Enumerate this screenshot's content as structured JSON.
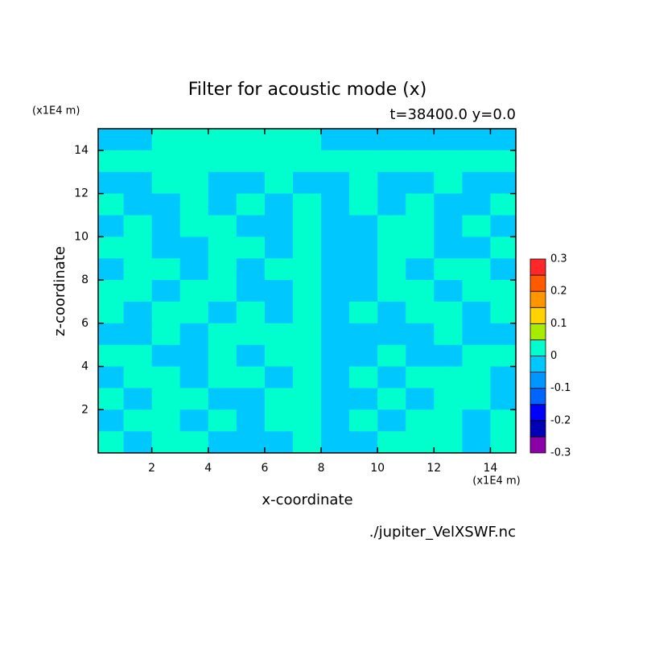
{
  "chart_data": {
    "type": "contour",
    "title": "Filter for acoustic mode (x)",
    "subtitle": "t=38400.0 y=0.0",
    "xlabel": "x-coordinate",
    "ylabel": "z-coordinate",
    "xunit": "(x1E4 m)",
    "yunit": "(x1E4 m)",
    "footer": "./jupiter_VelXSWF.nc",
    "xlim": [
      0.1,
      14.9
    ],
    "ylim": [
      0,
      15
    ],
    "xticks": [
      2,
      4,
      6,
      8,
      10,
      12,
      14
    ],
    "yticks": [
      2,
      4,
      6,
      8,
      10,
      12,
      14
    ],
    "x": [
      0.5,
      1.5,
      2.5,
      3.5,
      4.5,
      5.5,
      6.5,
      7.5,
      8.5,
      9.5,
      10.5,
      11.5,
      12.5,
      13.5,
      14.5
    ],
    "z": [
      14.5,
      13.5,
      12.5,
      11.5,
      10.5,
      9.5,
      8.5,
      7.5,
      6.5,
      5.5,
      4.5,
      3.5,
      2.5,
      1.5,
      0.5
    ],
    "values": [
      [
        -0.02,
        -0.02,
        0.02,
        0.02,
        0.02,
        0.02,
        0.02,
        0.02,
        -0.02,
        -0.02,
        -0.02,
        -0.02,
        -0.02,
        -0.02,
        -0.02
      ],
      [
        0.02,
        0.02,
        0.02,
        0.02,
        0.02,
        0.02,
        0.02,
        0.02,
        0.02,
        0.02,
        0.02,
        0.02,
        0.02,
        0.02,
        0.02
      ],
      [
        -0.02,
        -0.02,
        0.02,
        0.02,
        -0.02,
        -0.02,
        0.02,
        -0.02,
        -0.02,
        0.02,
        -0.02,
        -0.02,
        0.02,
        -0.02,
        -0.02
      ],
      [
        0.02,
        -0.02,
        -0.02,
        0.02,
        -0.02,
        0.02,
        -0.02,
        0.02,
        -0.02,
        0.02,
        -0.02,
        0.02,
        -0.02,
        -0.02,
        0.02
      ],
      [
        -0.02,
        0.02,
        -0.02,
        0.02,
        0.02,
        -0.02,
        -0.02,
        0.02,
        -0.02,
        -0.02,
        0.02,
        0.02,
        -0.02,
        0.02,
        -0.02
      ],
      [
        0.02,
        0.02,
        -0.02,
        -0.02,
        0.02,
        0.02,
        -0.02,
        0.02,
        -0.02,
        -0.02,
        0.02,
        0.02,
        -0.02,
        -0.02,
        0.02
      ],
      [
        -0.02,
        0.02,
        0.02,
        -0.02,
        0.02,
        -0.02,
        0.02,
        0.02,
        -0.02,
        -0.02,
        0.02,
        -0.02,
        0.02,
        0.02,
        -0.02
      ],
      [
        0.02,
        0.02,
        -0.02,
        0.02,
        0.02,
        -0.02,
        -0.02,
        0.02,
        -0.02,
        -0.02,
        0.02,
        0.02,
        -0.02,
        0.02,
        0.02
      ],
      [
        0.02,
        -0.02,
        0.02,
        0.02,
        -0.02,
        0.02,
        -0.02,
        0.02,
        -0.02,
        0.02,
        -0.02,
        0.02,
        0.02,
        -0.02,
        0.02
      ],
      [
        -0.02,
        -0.02,
        0.02,
        -0.02,
        0.02,
        0.02,
        0.02,
        0.02,
        -0.02,
        -0.02,
        -0.02,
        -0.02,
        0.02,
        -0.02,
        -0.02
      ],
      [
        0.02,
        0.02,
        -0.02,
        -0.02,
        0.02,
        -0.02,
        0.02,
        0.02,
        -0.02,
        -0.02,
        0.02,
        -0.02,
        -0.02,
        0.02,
        0.02
      ],
      [
        -0.02,
        0.02,
        0.02,
        -0.02,
        0.02,
        0.02,
        -0.02,
        0.02,
        -0.02,
        0.02,
        -0.02,
        0.02,
        0.02,
        0.02,
        -0.02
      ],
      [
        0.02,
        -0.02,
        0.02,
        0.02,
        -0.02,
        -0.02,
        0.02,
        0.02,
        -0.02,
        -0.02,
        0.02,
        -0.02,
        0.02,
        0.02,
        -0.02
      ],
      [
        -0.02,
        0.02,
        0.02,
        -0.02,
        0.02,
        -0.02,
        0.02,
        0.02,
        -0.02,
        0.02,
        -0.02,
        0.02,
        0.02,
        -0.02,
        0.02
      ],
      [
        0.02,
        -0.02,
        0.02,
        0.02,
        -0.02,
        -0.02,
        -0.02,
        0.02,
        -0.02,
        -0.02,
        0.02,
        0.02,
        0.02,
        -0.02,
        0.02
      ]
    ],
    "levels": [
      -0.3,
      -0.25,
      -0.2,
      -0.15,
      -0.1,
      -0.05,
      0,
      0.05,
      0.1,
      0.15,
      0.2,
      0.25,
      0.3
    ],
    "colors": [
      "#8c00aa",
      "#0000b4",
      "#0000ff",
      "#0064ff",
      "#0096ff",
      "#00c8ff",
      "#00ffcc",
      "#a8eb00",
      "#ffd200",
      "#ff9600",
      "#ff5a00",
      "#ff2828",
      "#ffaaaa"
    ],
    "colorbar_ticks": [
      -0.3,
      -0.2,
      -0.1,
      0,
      0.1,
      0.2,
      0.3
    ]
  }
}
